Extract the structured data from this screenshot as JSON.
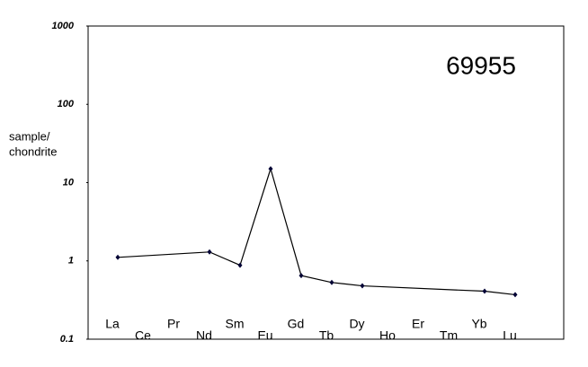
{
  "chart_data": {
    "type": "line",
    "title": "69955",
    "ylabel": [
      "sample/",
      "chondrite"
    ],
    "categories": [
      "La",
      "Ce",
      "Pr",
      "Nd",
      "Sm",
      "Eu",
      "Gd",
      "Tb",
      "Dy",
      "Ho",
      "Er",
      "Tm",
      "Yb",
      "Lu"
    ],
    "series": [
      {
        "color": "#000000",
        "values": [
          1.11,
          null,
          null,
          1.3,
          0.88,
          15,
          0.65,
          0.53,
          0.48,
          null,
          null,
          null,
          0.41,
          0.37
        ]
      }
    ],
    "span_gaps": true,
    "ylog": true,
    "ylim": [
      0.1,
      1000
    ],
    "yticks": [
      0.1,
      1,
      10,
      100,
      1000
    ],
    "grid": false
  }
}
